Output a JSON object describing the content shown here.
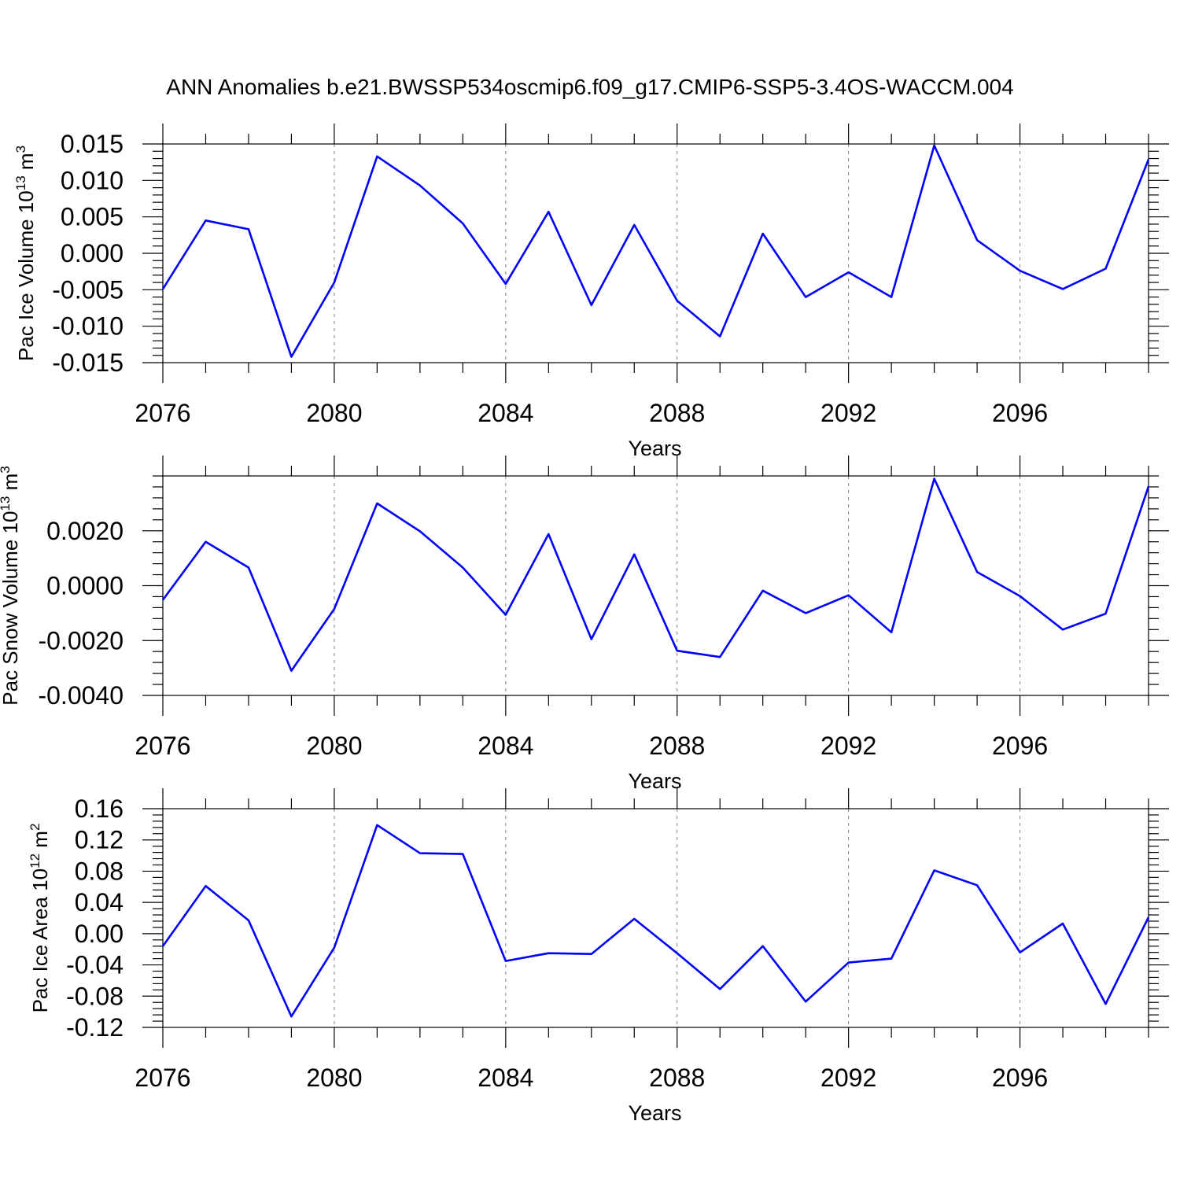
{
  "title": "ANN Anomalies b.e21.BWSSP534oscmip6.f09_g17.CMIP6-SSP5-3.4OS-WACCM.004",
  "colors": {
    "line": "#0000ff",
    "axis": "#000000",
    "grid": "#808080"
  },
  "chart_data": [
    {
      "type": "line",
      "ylabel": "Pac Ice Volume 10",
      "ylabel_sup": "13",
      "ylabel_unit": " m",
      "ylabel_unit_sup": "3",
      "xlabel": "Years",
      "xlim": [
        2076,
        2099
      ],
      "ylim": [
        -0.015,
        0.015
      ],
      "yticks": [
        -0.015,
        -0.01,
        -0.005,
        0.0,
        0.005,
        0.01,
        0.015
      ],
      "yticklabels": [
        "-0.015",
        "-0.010",
        "-0.005",
        "0.000",
        "0.005",
        "0.010",
        "0.015"
      ],
      "xticks": [
        2076,
        2080,
        2084,
        2088,
        2092,
        2096
      ],
      "xticklabels": [
        "2076",
        "2080",
        "2084",
        "2088",
        "2092",
        "2096"
      ],
      "grid_x": [
        2080,
        2084,
        2088,
        2092,
        2096
      ],
      "x": [
        2076,
        2077,
        2078,
        2079,
        2080,
        2081,
        2082,
        2083,
        2084,
        2085,
        2086,
        2087,
        2088,
        2089,
        2090,
        2091,
        2092,
        2093,
        2094,
        2095,
        2096,
        2097,
        2098,
        2099
      ],
      "values": [
        -0.0049,
        0.0045,
        0.0033,
        -0.0142,
        -0.004,
        0.0133,
        0.0093,
        0.0041,
        -0.0042,
        0.0057,
        -0.0071,
        0.0039,
        -0.0065,
        -0.0114,
        0.0027,
        -0.006,
        -0.0026,
        -0.006,
        0.0148,
        0.0018,
        -0.0024,
        -0.0049,
        -0.0021,
        0.0129
      ]
    },
    {
      "type": "line",
      "ylabel": "Pac Snow Volume 10",
      "ylabel_sup": "13",
      "ylabel_unit": " m",
      "ylabel_unit_sup": "3",
      "xlabel": "Years",
      "xlim": [
        2076,
        2099
      ],
      "ylim": [
        -0.004,
        0.004
      ],
      "yticks": [
        -0.004,
        -0.002,
        0.0,
        0.002
      ],
      "yticklabels": [
        "-0.0040",
        "-0.0020",
        "0.0000",
        "0.0020"
      ],
      "xticks": [
        2076,
        2080,
        2084,
        2088,
        2092,
        2096
      ],
      "xticklabels": [
        "2076",
        "2080",
        "2084",
        "2088",
        "2092",
        "2096"
      ],
      "grid_x": [
        2080,
        2084,
        2088,
        2092,
        2096
      ],
      "x": [
        2076,
        2077,
        2078,
        2079,
        2080,
        2081,
        2082,
        2083,
        2084,
        2085,
        2086,
        2087,
        2088,
        2089,
        2090,
        2091,
        2092,
        2093,
        2094,
        2095,
        2096,
        2097,
        2098,
        2099
      ],
      "values": [
        -0.00052,
        0.0016,
        0.00066,
        -0.0031,
        -0.00085,
        0.003,
        0.00198,
        0.00066,
        -0.00106,
        0.00188,
        -0.00195,
        0.00114,
        -0.00237,
        -0.0026,
        -0.00018,
        -0.001,
        -0.00035,
        -0.0017,
        0.0039,
        0.0005,
        -0.00038,
        -0.0016,
        -0.00102,
        0.00362
      ]
    },
    {
      "type": "line",
      "ylabel": "Pac Ice Area 10",
      "ylabel_sup": "12",
      "ylabel_unit": " m",
      "ylabel_unit_sup": "2",
      "xlabel": "Years",
      "xlim": [
        2076,
        2099
      ],
      "ylim": [
        -0.12,
        0.16
      ],
      "yticks": [
        -0.12,
        -0.08,
        -0.04,
        0.0,
        0.04,
        0.08,
        0.12,
        0.16
      ],
      "yticklabels": [
        "-0.12",
        "-0.08",
        "-0.04",
        "0.00",
        "0.04",
        "0.08",
        "0.12",
        "0.16"
      ],
      "xticks": [
        2076,
        2080,
        2084,
        2088,
        2092,
        2096
      ],
      "xticklabels": [
        "2076",
        "2080",
        "2084",
        "2088",
        "2092",
        "2096"
      ],
      "grid_x": [
        2080,
        2084,
        2088,
        2092,
        2096
      ],
      "x": [
        2076,
        2077,
        2078,
        2079,
        2080,
        2081,
        2082,
        2083,
        2084,
        2085,
        2086,
        2087,
        2088,
        2089,
        2090,
        2091,
        2092,
        2093,
        2094,
        2095,
        2096,
        2097,
        2098,
        2099
      ],
      "values": [
        -0.016,
        0.061,
        0.017,
        -0.106,
        -0.018,
        0.139,
        0.103,
        0.102,
        -0.035,
        -0.025,
        -0.026,
        0.019,
        -0.025,
        -0.071,
        -0.016,
        -0.087,
        -0.037,
        -0.032,
        0.081,
        0.062,
        -0.024,
        0.013,
        -0.09,
        0.021
      ]
    }
  ]
}
